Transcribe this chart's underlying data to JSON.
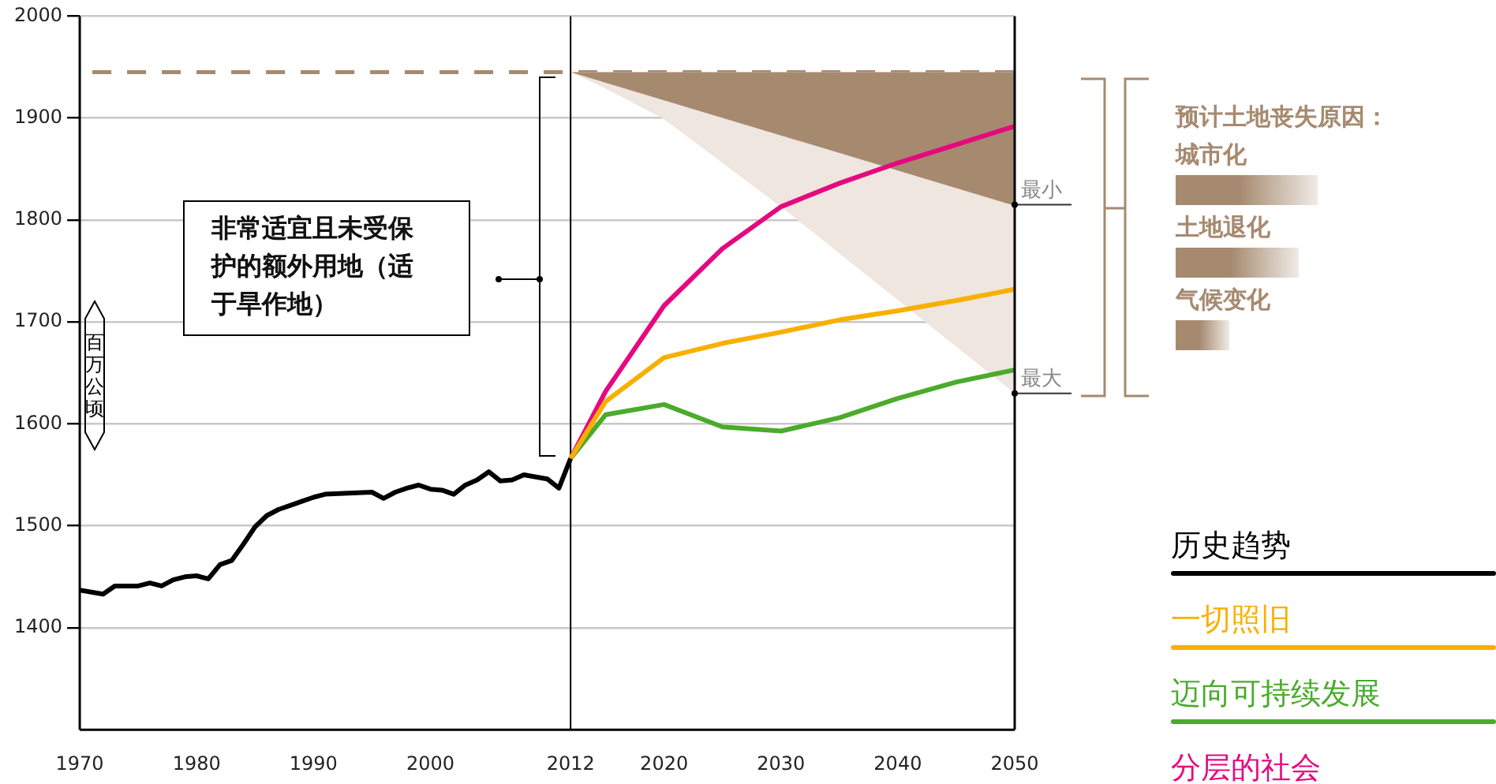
{
  "chart_data": {
    "type": "line",
    "ylabel": "百万公顷",
    "xlim": [
      1970,
      2050
    ],
    "xticks": [
      1970,
      1980,
      1990,
      2000,
      2012,
      2020,
      2030,
      2040,
      2050
    ],
    "ylim": [
      1300,
      2000
    ],
    "yticks": [
      1400,
      1500,
      1600,
      1700,
      1800,
      1900,
      2000
    ],
    "grid": "y",
    "legend": "bottom right",
    "line_style": "solid",
    "marker": "none",
    "ref_lines": [
      {
        "axis": "y",
        "value": 1945,
        "color": "#a68a70",
        "line_style": "dashed"
      },
      {
        "axis": "x",
        "value": 2012,
        "color": "#000000",
        "line_style": "solid"
      }
    ],
    "annotations": [
      "非常适宜且未受保护的额外用地（适于旱作地）",
      {
        "text": "最小",
        "x": 2050,
        "y": 1815
      },
      {
        "text": "最大",
        "x": 2050,
        "y": 1630
      },
      "预计土地丧失原因：",
      "城市化",
      "土地退化",
      "气候变化"
    ],
    "series": [
      {
        "type": "area",
        "color": "#eee6df",
        "x": [
          2012,
          2050,
          2050,
          2030,
          2020,
          2015,
          2012
        ],
        "values": [
          1945,
          1945,
          1630,
          1813,
          1899,
          1929,
          1945
        ]
      },
      {
        "type": "area",
        "color": "#a68a70",
        "x": [
          2012,
          2050,
          2050,
          2012
        ],
        "values": [
          1945,
          1945,
          1814,
          1945
        ]
      },
      {
        "name": "历史趋势",
        "color": "#000000",
        "x": [
          1970,
          1972,
          1973,
          1975,
          1976,
          1977,
          1978,
          1979,
          1980,
          1981,
          1982,
          1983,
          1984,
          1985,
          1986,
          1987,
          1988,
          1989,
          1990,
          1991,
          1995,
          1996,
          1997,
          1998,
          1999,
          2000,
          2001,
          2002,
          2003,
          2004,
          2005,
          2006,
          2007,
          2008,
          2010,
          2011,
          2012
        ],
        "values": [
          1437,
          1433,
          1441,
          1441,
          1444,
          1441,
          1447,
          1450,
          1451,
          1448,
          1462,
          1466,
          1482,
          1499,
          1510,
          1516,
          1520,
          1524,
          1528,
          1531,
          1533,
          1527,
          1533,
          1537,
          1540,
          1536,
          1535,
          1531,
          1540,
          1545,
          1553,
          1544,
          1545,
          1550,
          1546,
          1537,
          1566
        ]
      },
      {
        "name": "一切照旧",
        "color": "#f7b000",
        "x": [
          2012,
          2015,
          2020,
          2025,
          2030,
          2035,
          2040,
          2045,
          2050
        ],
        "values": [
          1566,
          1622,
          1665,
          1679,
          1690,
          1702,
          1711,
          1721,
          1732
        ]
      },
      {
        "name": "迈向可持续发展",
        "color": "#4aab2c",
        "x": [
          2012,
          2015,
          2020,
          2025,
          2030,
          2035,
          2040,
          2045,
          2050
        ],
        "values": [
          1566,
          1609,
          1619,
          1597,
          1593,
          1606,
          1625,
          1641,
          1653
        ]
      },
      {
        "name": "分层的社会",
        "color": "#e5097f",
        "x": [
          2012,
          2015,
          2020,
          2025,
          2030,
          2035,
          2040,
          2045,
          2050
        ],
        "values": [
          1566,
          1632,
          1716,
          1772,
          1813,
          1836,
          1856,
          1874,
          1892
        ]
      }
    ]
  }
}
